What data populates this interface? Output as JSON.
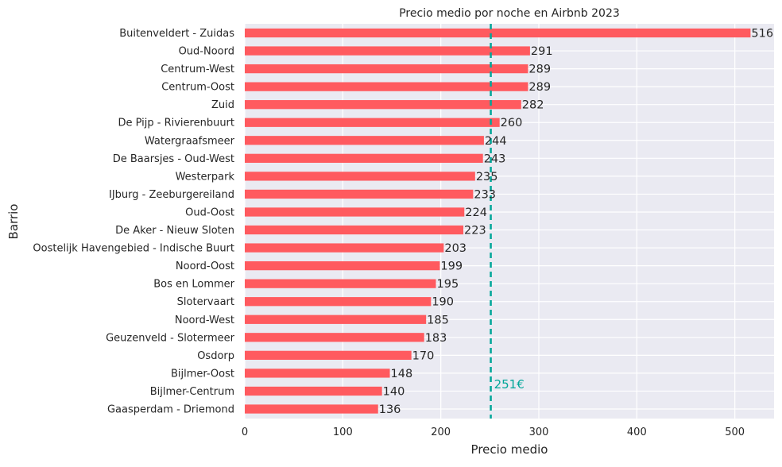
{
  "chart_data": {
    "type": "bar",
    "orientation": "horizontal",
    "title": "Precio medio por noche en Airbnb 2023",
    "xlabel": "Precio medio",
    "ylabel": "Barrio",
    "xlim": [
      0,
      540
    ],
    "xticks": [
      0,
      100,
      200,
      300,
      400,
      500
    ],
    "grid": true,
    "bar_color": "#ff5a5f",
    "background_color": "#eaeaf2",
    "categories": [
      "Buitenveldert - Zuidas",
      "Oud-Noord",
      "Centrum-West",
      "Centrum-Oost",
      "Zuid",
      "De Pijp - Rivierenbuurt",
      "Watergraafsmeer",
      "De Baarsjes - Oud-West",
      "Westerpark",
      "IJburg - Zeeburgereiland",
      "Oud-Oost",
      "De Aker - Nieuw Sloten",
      "Oostelijk Havengebied - Indische Buurt",
      "Noord-Oost",
      "Bos en Lommer",
      "Slotervaart",
      "Noord-West",
      "Geuzenveld - Slotermeer",
      "Osdorp",
      "Bijlmer-Oost",
      "Bijlmer-Centrum",
      "Gaasperdam - Driemond"
    ],
    "values": [
      516,
      291,
      289,
      289,
      282,
      260,
      244,
      243,
      235,
      233,
      224,
      223,
      203,
      199,
      195,
      190,
      185,
      183,
      170,
      148,
      140,
      136
    ],
    "reference_line": {
      "value": 251,
      "label": "251€",
      "color": "#00a699",
      "style": "dashed"
    }
  }
}
